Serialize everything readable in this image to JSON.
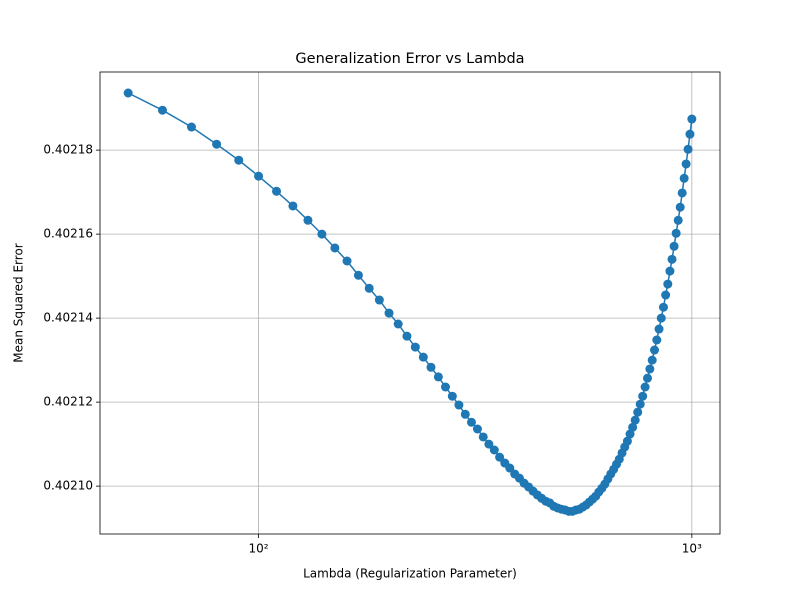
{
  "chart_data": {
    "type": "line",
    "title": "Generalization Error vs Lambda",
    "x_label": "Lambda (Regularization Parameter)",
    "y_label": "Mean Squared Error",
    "x_scale": "log",
    "grid": true,
    "marker": "circle",
    "xlim": [
      43.05,
      1161.4
    ],
    "ylim": [
      0.4020886,
      0.4021986
    ],
    "xticks": [
      {
        "value": 100,
        "label": "10²"
      },
      {
        "value": 1000,
        "label": "10³"
      }
    ],
    "yticks": [
      {
        "value": 0.4021,
        "label": "0.40210"
      },
      0.40212,
      0.40214,
      0.40216,
      0.40218
    ],
    "x": [
      50,
      60,
      70,
      80,
      90,
      100,
      110,
      120,
      130,
      140,
      150,
      160,
      170,
      180,
      190,
      200,
      210,
      220,
      230,
      240,
      250,
      260,
      270,
      280,
      290,
      300,
      310,
      320,
      330,
      340,
      350,
      360,
      370,
      380,
      390,
      400,
      410,
      420,
      430,
      440,
      450,
      460,
      470,
      480,
      490,
      500,
      510,
      520,
      530,
      540,
      550,
      560,
      570,
      580,
      590,
      600,
      610,
      620,
      630,
      640,
      650,
      660,
      670,
      680,
      690,
      700,
      710,
      720,
      730,
      740,
      750,
      760,
      770,
      780,
      790,
      800,
      810,
      820,
      830,
      840,
      850,
      860,
      870,
      880,
      890,
      900,
      910,
      920,
      930,
      940,
      950,
      960,
      970,
      980,
      990,
      1000
    ],
    "series": [
      {
        "color": "#1f77b4",
        "values": [
          0.4021936,
          0.4021895,
          0.4021855,
          0.4021814,
          0.4021776,
          0.4021738,
          0.4021702,
          0.4021667,
          0.4021633,
          0.40216,
          0.4021567,
          0.4021536,
          0.4021502,
          0.4021471,
          0.4021443,
          0.4021412,
          0.4021386,
          0.4021357,
          0.4021331,
          0.4021307,
          0.4021283,
          0.402126,
          0.4021236,
          0.4021214,
          0.4021193,
          0.4021171,
          0.4021152,
          0.4021136,
          0.4021117,
          0.40211,
          0.4021086,
          0.4021069,
          0.4021055,
          0.4021043,
          0.4021029,
          0.4021019,
          0.4021007,
          0.4020998,
          0.4020988,
          0.4020979,
          0.4020971,
          0.4020964,
          0.402096,
          0.4020952,
          0.4020948,
          0.4020945,
          0.4020943,
          0.402094,
          0.402094,
          0.4020943,
          0.4020945,
          0.402095,
          0.4020955,
          0.4020962,
          0.4020969,
          0.4020976,
          0.4020986,
          0.4020995,
          0.4021005,
          0.4021017,
          0.4021029,
          0.402104,
          0.4021052,
          0.4021064,
          0.4021079,
          0.4021093,
          0.4021107,
          0.4021124,
          0.402114,
          0.4021157,
          0.4021176,
          0.4021195,
          0.4021214,
          0.4021236,
          0.4021257,
          0.4021279,
          0.40213,
          0.4021324,
          0.4021348,
          0.4021374,
          0.40214,
          0.4021426,
          0.4021455,
          0.4021481,
          0.4021512,
          0.402154,
          0.4021571,
          0.4021602,
          0.4021633,
          0.4021664,
          0.4021698,
          0.4021733,
          0.4021767,
          0.4021802,
          0.4021838,
          0.4021874
        ]
      }
    ]
  }
}
